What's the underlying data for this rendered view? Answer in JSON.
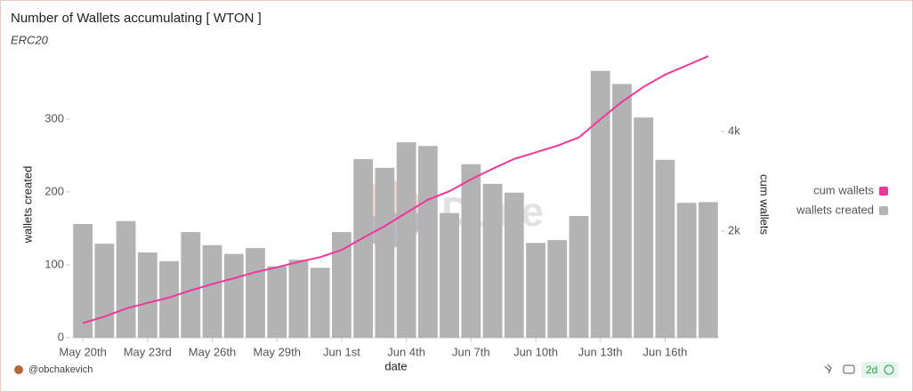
{
  "chart_data": {
    "type": "bar_line",
    "title": "Number of Wallets accumulating [ WTON ]",
    "subtitle": "ERC20",
    "watermark": "Dune",
    "author": "@obchakevich",
    "refresh": "2d",
    "x_label": "date",
    "y_label": "wallets created",
    "y2_label": "cum wallets",
    "categories": [
      "May 20th",
      null,
      null,
      "May 23rd",
      null,
      null,
      "May 26th",
      null,
      null,
      "May 29th",
      null,
      null,
      "Jun 1st",
      null,
      null,
      "Jun 4th",
      null,
      null,
      "Jun 7th",
      null,
      null,
      "Jun 10th",
      null,
      null,
      "Jun 13th",
      null,
      null,
      "Jun 16th",
      null,
      null
    ],
    "series": [
      {
        "name": "cum wallets",
        "color": "#f0359f",
        "axis": "y2",
        "kind": "line",
        "values": [
          156,
          285,
          445,
          562,
          667,
          812,
          939,
          1054,
          1177,
          1275,
          1382,
          1478,
          1623,
          1868,
          2101,
          2369,
          2632,
          2803,
          3041,
          3252,
          3451,
          3581,
          3715,
          3882,
          4248,
          4596,
          4898,
          5142,
          5327,
          5513
        ]
      },
      {
        "name": "wallets created",
        "color": "#b3b3b3",
        "kind": "bar",
        "values": [
          156,
          129,
          160,
          117,
          105,
          145,
          127,
          115,
          123,
          98,
          107,
          96,
          145,
          245,
          233,
          268,
          263,
          171,
          238,
          211,
          199,
          130,
          134,
          167,
          366,
          348,
          302,
          244,
          185,
          186
        ]
      }
    ],
    "ylim": [
      0,
      390
    ],
    "yticks": [
      0,
      100,
      200,
      300
    ],
    "y2lim": [
      -140,
      5570
    ],
    "y2ticks": [
      {
        "value": 2000,
        "label": "2k"
      },
      {
        "value": 4000,
        "label": "4k"
      }
    ],
    "legend": "right"
  }
}
